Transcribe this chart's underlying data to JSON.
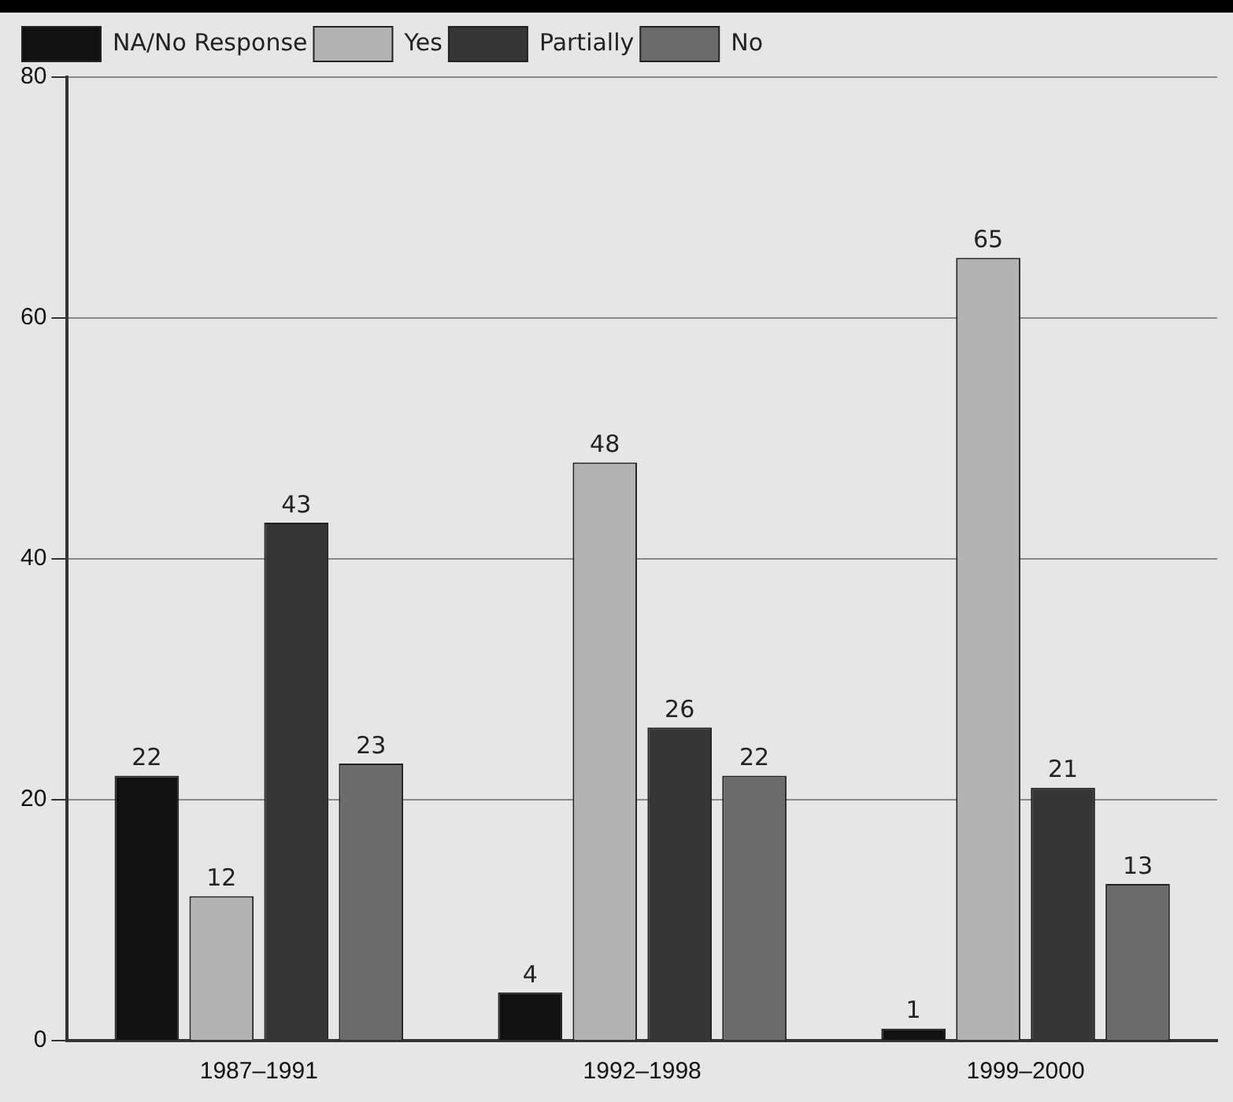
{
  "chart_data": {
    "type": "bar",
    "categories": [
      "1987–1991",
      "1992–1998",
      "1999–2000"
    ],
    "series": [
      {
        "name": "NA/No Response",
        "color": "#111111",
        "values": [
          22,
          4,
          1
        ]
      },
      {
        "name": "Yes",
        "color": "#b3b3b3",
        "values": [
          12,
          48,
          65
        ]
      },
      {
        "name": "Partially",
        "color": "#363636",
        "values": [
          43,
          26,
          21
        ]
      },
      {
        "name": "No",
        "color": "#6b6b6b",
        "values": [
          23,
          22,
          13
        ]
      }
    ],
    "ylim": [
      0,
      80
    ],
    "yticks": [
      0,
      20,
      40,
      60,
      80
    ],
    "grid": "y",
    "legend": "top left",
    "data_labels": true
  }
}
